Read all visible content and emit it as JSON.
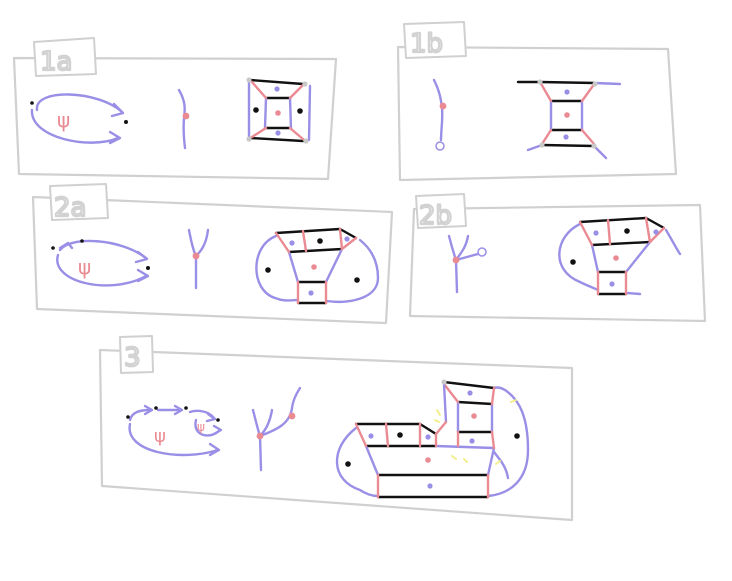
{
  "panels": [
    {
      "id": "1a",
      "label": "1a"
    },
    {
      "id": "1b",
      "label": "1b"
    },
    {
      "id": "2a",
      "label": "2a"
    },
    {
      "id": "2b",
      "label": "2b"
    },
    {
      "id": "3",
      "label": "3"
    }
  ],
  "symbol_glyph": "ψ",
  "colors": {
    "frame": "#d0d0d0",
    "purple": "#9a8fe6",
    "pink": "#ea8a92",
    "black": "#111111",
    "grey_dot": "#c8c8c8",
    "yellow": "#f2ee8c"
  }
}
